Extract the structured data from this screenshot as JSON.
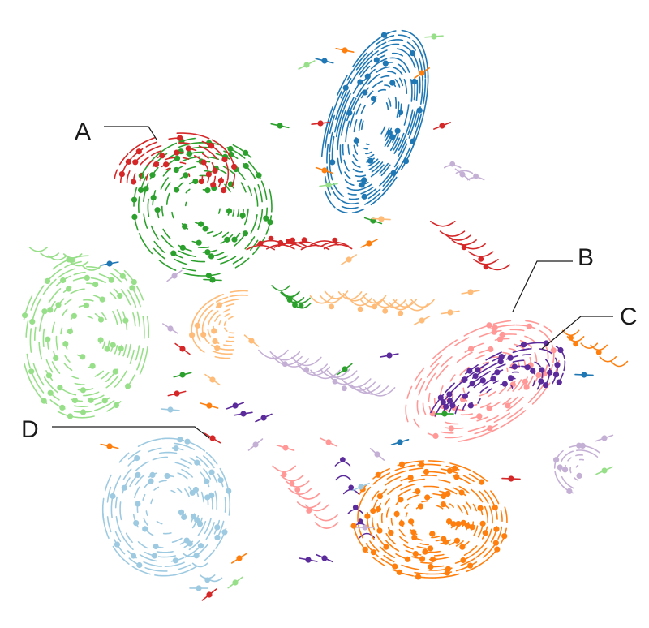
{
  "colors": {
    "green": "#2ca02c",
    "red": "#d62728",
    "blue": "#1f77b4",
    "orange": "#ff7f0e",
    "light_green": "#98df8a",
    "light_orange": "#ffbb78",
    "lavender": "#c5b0d5",
    "pink": "#ff9896",
    "purple": "#5b2a9b",
    "light_blue": "#9ecae1",
    "leader_line": "#1a1a1a"
  },
  "callouts": {
    "a": "A",
    "b": "B",
    "c": "C",
    "d": "D"
  },
  "clusters": [
    {
      "name": "cluster-green-swirl",
      "color": "green"
    },
    {
      "name": "cluster-red-swirl",
      "color": "red"
    },
    {
      "name": "cluster-blue-spiral",
      "color": "blue"
    },
    {
      "name": "cluster-light-green-spiral",
      "color": "light_green"
    },
    {
      "name": "cluster-light-orange-arcs",
      "color": "light_orange"
    },
    {
      "name": "cluster-lavender-arcs",
      "color": "lavender"
    },
    {
      "name": "cluster-pink-swirl",
      "color": "pink"
    },
    {
      "name": "cluster-purple-band",
      "color": "purple"
    },
    {
      "name": "cluster-orange-spiral",
      "color": "orange"
    },
    {
      "name": "cluster-light-blue-spiral",
      "color": "light_blue"
    },
    {
      "name": "scattered-points",
      "color": "mixed"
    }
  ]
}
